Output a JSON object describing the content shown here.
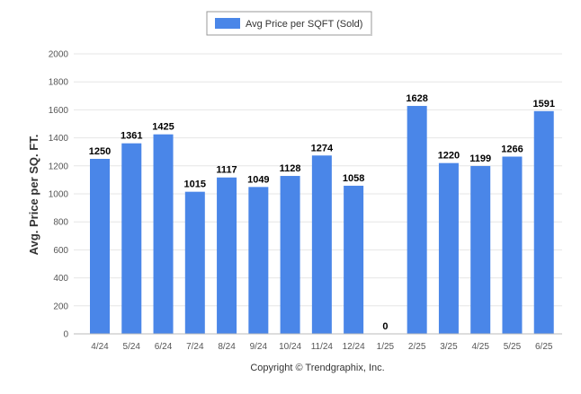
{
  "chart_data": {
    "type": "bar",
    "legend": {
      "label": "Avg Price per SQFT (Sold)",
      "position": "top-center"
    },
    "categories": [
      "4/24",
      "5/24",
      "6/24",
      "7/24",
      "8/24",
      "9/24",
      "10/24",
      "11/24",
      "12/24",
      "1/25",
      "2/25",
      "3/25",
      "4/25",
      "5/25",
      "6/25"
    ],
    "series": [
      {
        "name": "Avg Price per SQFT (Sold)",
        "values": [
          1250,
          1361,
          1425,
          1015,
          1117,
          1049,
          1128,
          1274,
          1058,
          0,
          1628,
          1220,
          1199,
          1266,
          1591
        ],
        "color": "#4a86e8"
      }
    ],
    "ylabel": "Avg. Price per SQ. FT.",
    "xlabel": "",
    "ylim": [
      0,
      2000
    ],
    "yticks": [
      0,
      200,
      400,
      600,
      800,
      1000,
      1200,
      1400,
      1600,
      1800,
      2000
    ],
    "grid": true
  },
  "footer": {
    "copyright": "Copyright © Trendgraphix, Inc."
  }
}
